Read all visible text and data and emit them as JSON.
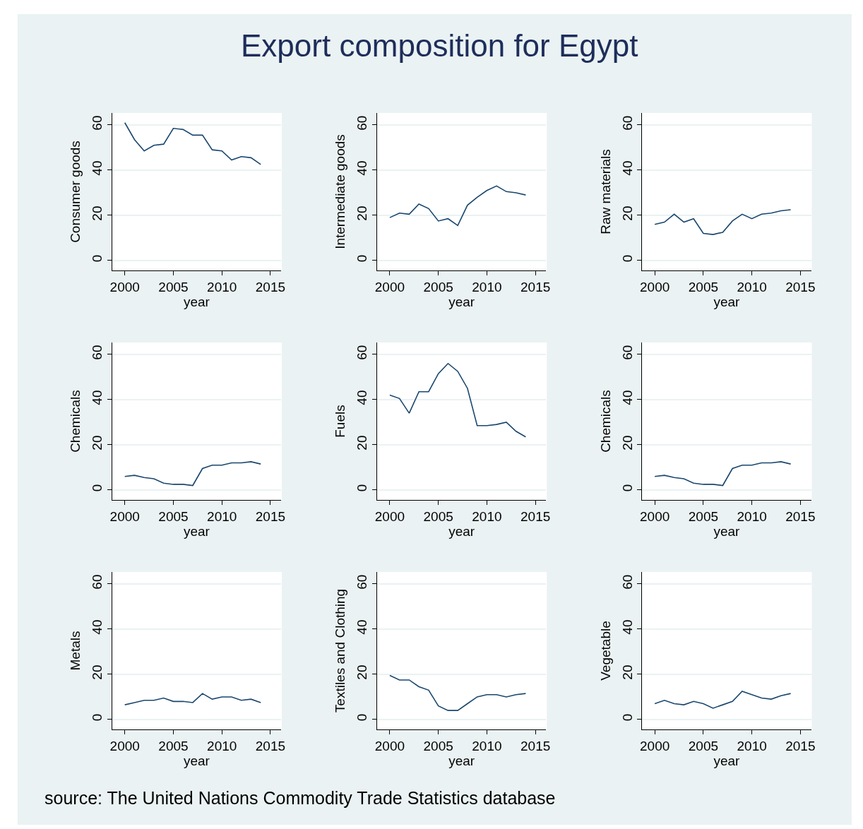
{
  "chart_data": [
    {
      "type": "line",
      "title": "Export composition for Egypt",
      "ylabel": "Consumer goods",
      "xlabel": "year",
      "color": "#1a476f",
      "x": [
        2000,
        2001,
        2002,
        2003,
        2004,
        2005,
        2006,
        2007,
        2008,
        2009,
        2010,
        2011,
        2012,
        2013,
        2014
      ],
      "values": [
        61,
        53.5,
        48.5,
        51,
        51.5,
        58.5,
        58,
        55.5,
        55.5,
        49,
        48.5,
        44.5,
        46,
        45.5,
        42.5
      ],
      "xlim": [
        1998.7,
        2016.1
      ],
      "ylim": [
        -4.4,
        65.3
      ],
      "xticks": [
        2000,
        2005,
        2010,
        2015
      ],
      "yticks": [
        0,
        20,
        40,
        60
      ],
      "grid": "y"
    },
    {
      "type": "line",
      "ylabel": "Intermediate goods",
      "xlabel": "year",
      "color": "#1a476f",
      "x": [
        2000,
        2001,
        2002,
        2003,
        2004,
        2005,
        2006,
        2007,
        2008,
        2009,
        2010,
        2011,
        2012,
        2013,
        2014
      ],
      "values": [
        19,
        21,
        20.5,
        25,
        23,
        17.5,
        18.5,
        15.5,
        24.5,
        28,
        31,
        33,
        30.5,
        30,
        29
      ],
      "xlim": [
        1998.7,
        2016.1
      ],
      "ylim": [
        -4.4,
        65.3
      ],
      "xticks": [
        2000,
        2005,
        2010,
        2015
      ],
      "yticks": [
        0,
        20,
        40,
        60
      ],
      "grid": "y"
    },
    {
      "type": "line",
      "ylabel": "Raw materials",
      "xlabel": "year",
      "color": "#1a476f",
      "x": [
        2000,
        2001,
        2002,
        2003,
        2004,
        2005,
        2006,
        2007,
        2008,
        2009,
        2010,
        2011,
        2012,
        2013,
        2014
      ],
      "values": [
        16,
        17,
        20.5,
        17,
        18.5,
        12,
        11.5,
        12.5,
        17.5,
        20.5,
        18.5,
        20.5,
        21,
        22,
        22.5
      ],
      "xlim": [
        1998.7,
        2016.1
      ],
      "ylim": [
        -4.4,
        65.3
      ],
      "xticks": [
        2000,
        2005,
        2010,
        2015
      ],
      "yticks": [
        0,
        20,
        40,
        60
      ],
      "grid": "y"
    },
    {
      "type": "line",
      "ylabel": "Chemicals",
      "xlabel": "year",
      "color": "#1a476f",
      "x": [
        2000,
        2001,
        2002,
        2003,
        2004,
        2005,
        2006,
        2007,
        2008,
        2009,
        2010,
        2011,
        2012,
        2013,
        2014
      ],
      "values": [
        6,
        6.5,
        5.5,
        5,
        3,
        2.5,
        2.5,
        2,
        9.5,
        11,
        11,
        12,
        12,
        12.5,
        11.5
      ],
      "xlim": [
        1998.7,
        2016.1
      ],
      "ylim": [
        -4.4,
        65.3
      ],
      "xticks": [
        2000,
        2005,
        2010,
        2015
      ],
      "yticks": [
        0,
        20,
        40,
        60
      ],
      "grid": "y"
    },
    {
      "type": "line",
      "ylabel": "Fuels",
      "xlabel": "year",
      "color": "#1a476f",
      "x": [
        2000,
        2001,
        2002,
        2003,
        2004,
        2005,
        2006,
        2007,
        2008,
        2009,
        2010,
        2011,
        2012,
        2013,
        2014
      ],
      "values": [
        42,
        40.5,
        34,
        43.5,
        43.5,
        51.5,
        56,
        52.5,
        45,
        28.5,
        28.5,
        29,
        30,
        26,
        23.5
      ],
      "xlim": [
        1998.7,
        2016.1
      ],
      "ylim": [
        -4.4,
        65.3
      ],
      "xticks": [
        2000,
        2005,
        2010,
        2015
      ],
      "yticks": [
        0,
        20,
        40,
        60
      ],
      "grid": "y"
    },
    {
      "type": "line",
      "ylabel": "Chemicals",
      "xlabel": "year",
      "color": "#1a476f",
      "x": [
        2000,
        2001,
        2002,
        2003,
        2004,
        2005,
        2006,
        2007,
        2008,
        2009,
        2010,
        2011,
        2012,
        2013,
        2014
      ],
      "values": [
        6,
        6.5,
        5.5,
        5,
        3,
        2.5,
        2.5,
        2,
        9.5,
        11,
        11,
        12,
        12,
        12.5,
        11.5
      ],
      "xlim": [
        1998.7,
        2016.1
      ],
      "ylim": [
        -4.4,
        65.3
      ],
      "xticks": [
        2000,
        2005,
        2010,
        2015
      ],
      "yticks": [
        0,
        20,
        40,
        60
      ],
      "grid": "y"
    },
    {
      "type": "line",
      "ylabel": "Metals",
      "xlabel": "year",
      "color": "#1a476f",
      "x": [
        2000,
        2001,
        2002,
        2003,
        2004,
        2005,
        2006,
        2007,
        2008,
        2009,
        2010,
        2011,
        2012,
        2013,
        2014
      ],
      "values": [
        6.5,
        7.5,
        8.5,
        8.5,
        9.5,
        8,
        8,
        7.5,
        11.5,
        9,
        10,
        10,
        8.5,
        9,
        7.5
      ],
      "xlim": [
        1998.7,
        2016.1
      ],
      "ylim": [
        -4.4,
        65.3
      ],
      "xticks": [
        2000,
        2005,
        2010,
        2015
      ],
      "yticks": [
        0,
        20,
        40,
        60
      ],
      "grid": "y"
    },
    {
      "type": "line",
      "ylabel": "Textiles and Clothing",
      "xlabel": "year",
      "color": "#1a476f",
      "x": [
        2000,
        2001,
        2002,
        2003,
        2004,
        2005,
        2006,
        2007,
        2008,
        2009,
        2010,
        2011,
        2012,
        2013,
        2014
      ],
      "values": [
        19.5,
        17.5,
        17.5,
        14.5,
        13,
        6,
        4,
        4,
        7,
        10,
        11,
        11,
        10,
        11,
        11.5
      ],
      "xlim": [
        1998.7,
        2016.1
      ],
      "ylim": [
        -4.4,
        65.3
      ],
      "xticks": [
        2000,
        2005,
        2010,
        2015
      ],
      "yticks": [
        0,
        20,
        40,
        60
      ],
      "grid": "y"
    },
    {
      "type": "line",
      "ylabel": "Vegetable",
      "xlabel": "year",
      "color": "#1a476f",
      "x": [
        2000,
        2001,
        2002,
        2003,
        2004,
        2005,
        2006,
        2007,
        2008,
        2009,
        2010,
        2011,
        2012,
        2013,
        2014
      ],
      "values": [
        7,
        8.5,
        7,
        6.5,
        8,
        7,
        5,
        6.5,
        8,
        12.5,
        11,
        9.5,
        9,
        10.5,
        11.5
      ],
      "xlim": [
        1998.7,
        2016.1
      ],
      "ylim": [
        -4.4,
        65.3
      ],
      "xticks": [
        2000,
        2005,
        2010,
        2015
      ],
      "yticks": [
        0,
        20,
        40,
        60
      ],
      "grid": "y",
      "annotations": [
        "source: The United Nations Commodity Trade Statistics database"
      ]
    }
  ]
}
